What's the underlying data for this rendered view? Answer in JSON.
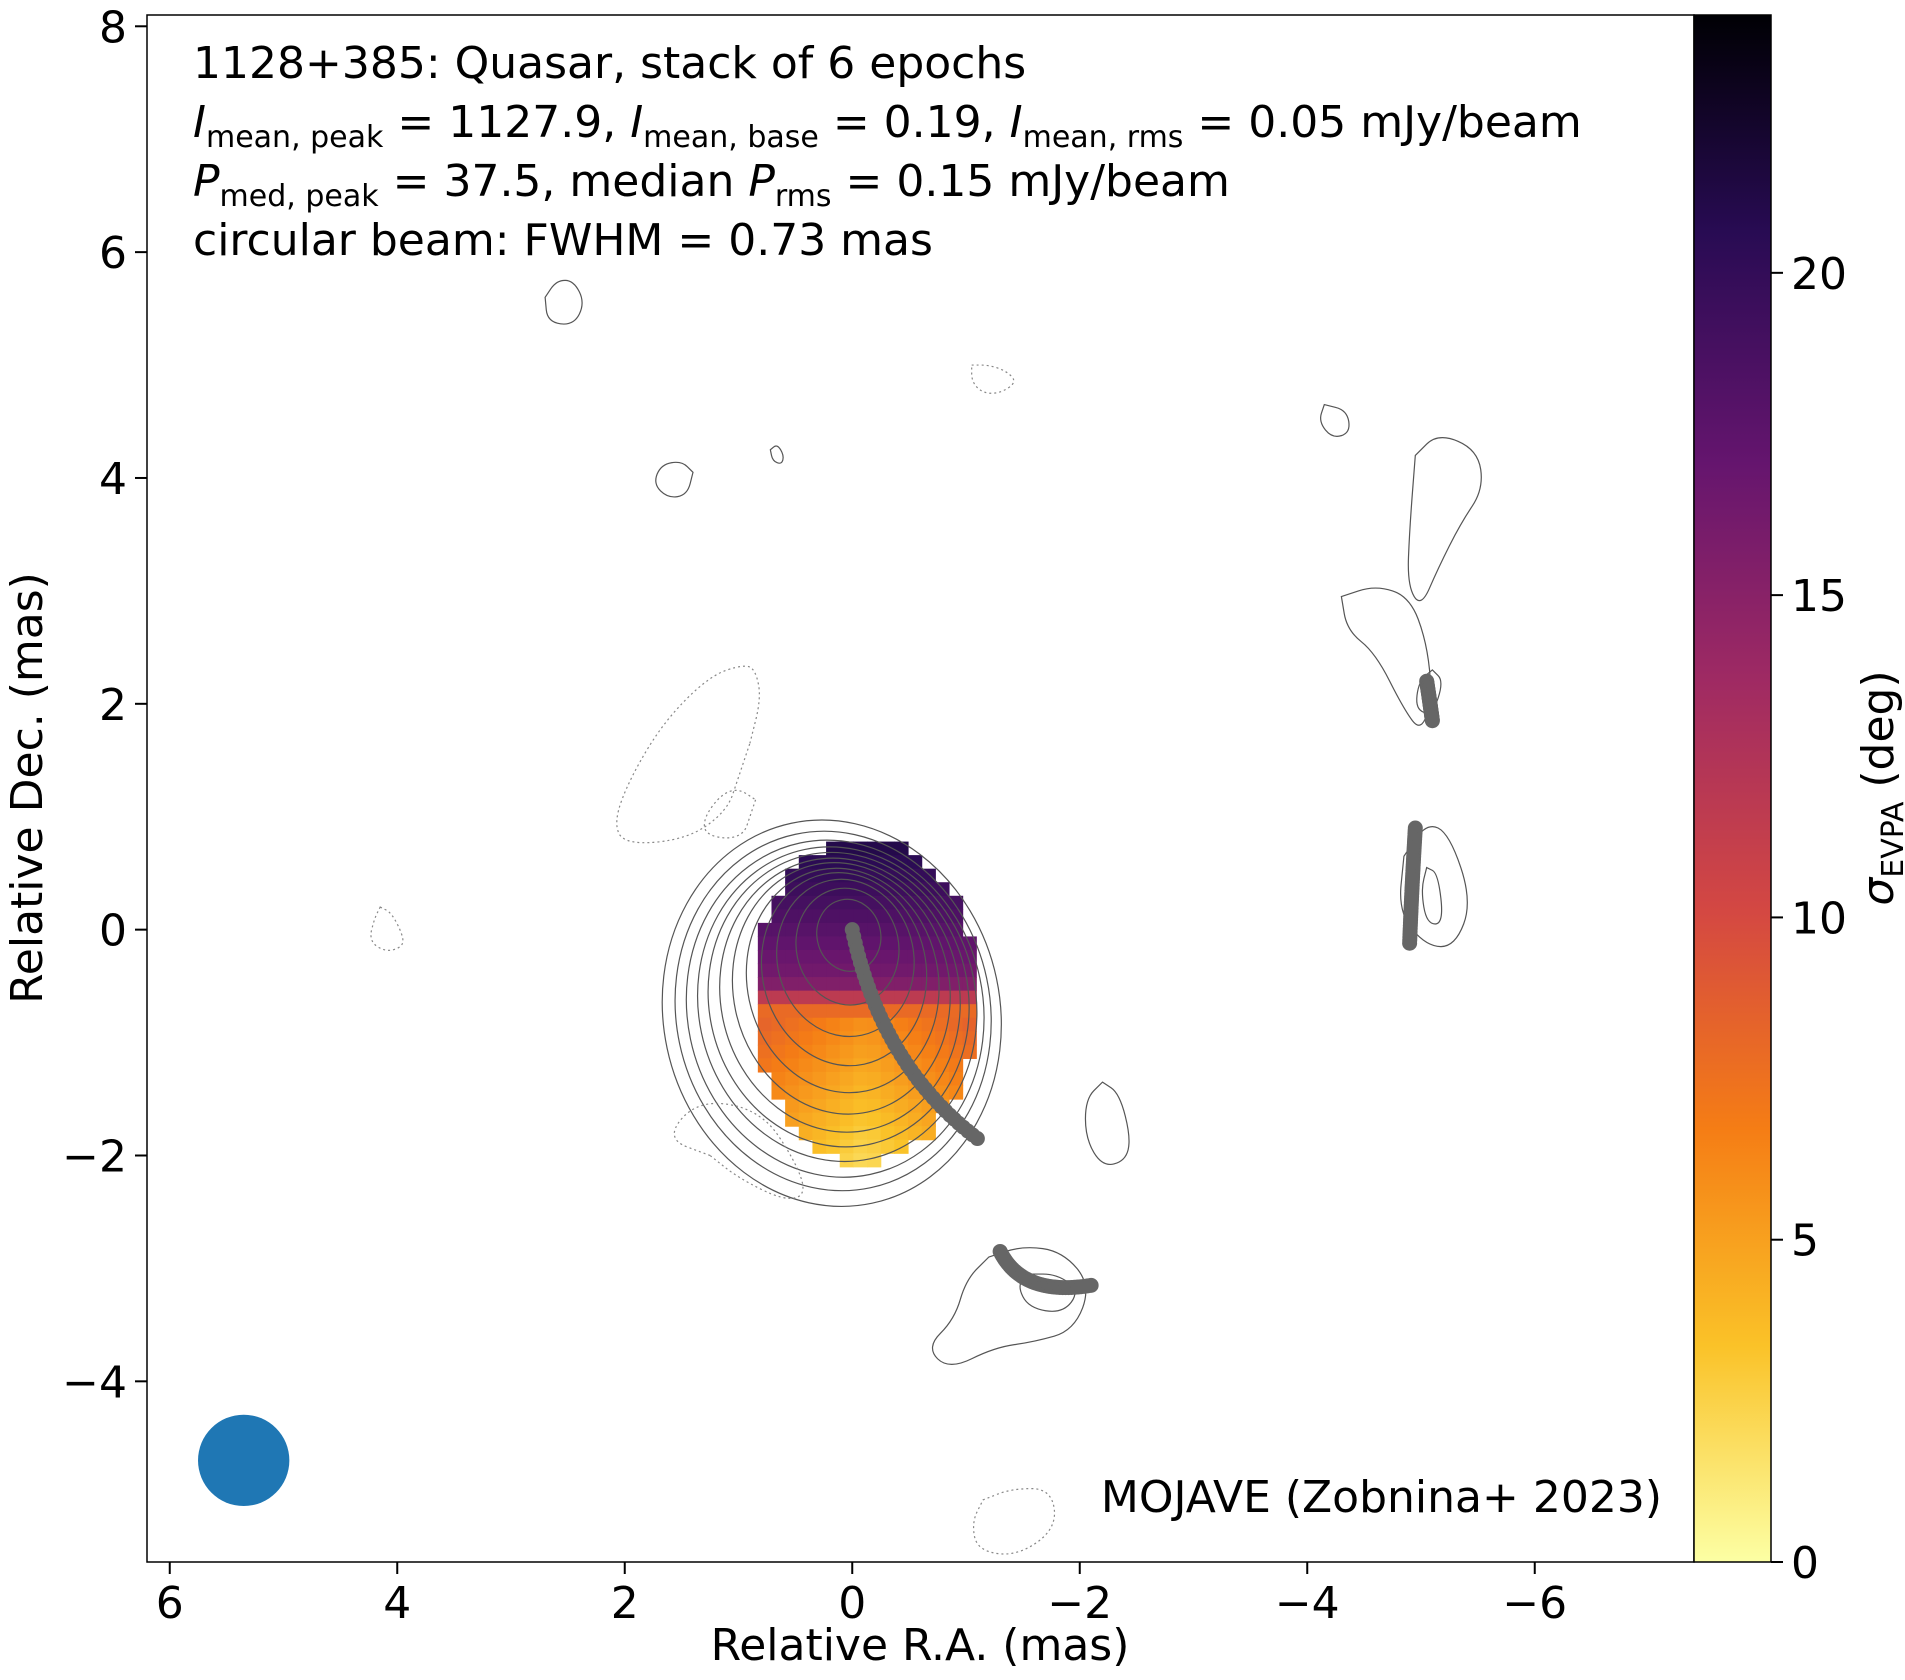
{
  "chart_data": {
    "type": "heatmap",
    "title_lines": [
      "1128+385: Quasar, stack of 6 epochs",
      "I_mean,peak = 1127.9, I_mean,base = 0.19, I_mean,rms = 0.05 mJy/beam",
      "P_med,peak = 37.5, median P_rms = 0.15 mJy/beam",
      "circular beam: FWHM = 0.73 mas"
    ],
    "info": {
      "line1": "1128+385: Quasar, stack of 6 epochs",
      "line2": {
        "i_sym": "I",
        "peak_sub": "mean, peak",
        "peak_val": " = 1127.9, ",
        "base_sub": "mean, base",
        "base_val": " = 0.19, ",
        "rms_sub": "mean, rms",
        "rms_val": " = 0.05 mJy/beam"
      },
      "line3": {
        "p_sym": "P",
        "peak_sub": "med, peak",
        "peak_val": " = 37.5, median ",
        "rms_sub": "rms",
        "rms_val": " = 0.15 mJy/beam"
      },
      "line4": "circular beam: FWHM = 0.73 mas"
    },
    "credit": "MOJAVE (Zobnina+ 2023)",
    "xlabel": "Relative R.A. (mas)",
    "ylabel": "Relative Dec. (mas)",
    "xlim": [
      6.2,
      -7.4
    ],
    "ylim": [
      -5.6,
      8.1
    ],
    "xticks": [
      6,
      4,
      2,
      0,
      -2,
      -4,
      -6
    ],
    "yticks": [
      8,
      6,
      4,
      2,
      0,
      -2,
      -4
    ],
    "colorbar": {
      "label_sym": "σ",
      "label_sub": "EVPA",
      "label_unit": " (deg)",
      "range": [
        0,
        24
      ],
      "ticks": [
        0,
        5,
        10,
        15,
        20
      ],
      "colormap": "inferno_r",
      "stops": [
        "#fcffa4",
        "#fac228",
        "#f57d15",
        "#d44842",
        "#9f2a63",
        "#65156e",
        "#280b53",
        "#000004"
      ]
    },
    "beam": {
      "ra": 5.35,
      "dec": -4.7,
      "fwhm": 0.73,
      "color": "#1f77b4"
    },
    "core_contours": [
      {
        "dec": -0.05,
        "ra_w": 0.28,
        "dec_h": 0.32,
        "shift": -0.05
      },
      {
        "dec": -0.15,
        "ra_w": 0.45,
        "dec_h": 0.52,
        "shift": -0.07
      },
      {
        "dec": -0.25,
        "ra_w": 0.6,
        "dec_h": 0.7,
        "shift": -0.1
      },
      {
        "dec": -0.35,
        "ra_w": 0.72,
        "dec_h": 0.86,
        "shift": -0.12
      },
      {
        "dec": -0.45,
        "ra_w": 0.84,
        "dec_h": 1.0,
        "shift": -0.14
      },
      {
        "dec": -0.52,
        "ra_w": 0.95,
        "dec_h": 1.12,
        "shift": -0.16
      },
      {
        "dec": -0.58,
        "ra_w": 1.05,
        "dec_h": 1.22,
        "shift": -0.18
      },
      {
        "dec": -0.62,
        "ra_w": 1.14,
        "dec_h": 1.31,
        "shift": -0.2
      },
      {
        "dec": -0.66,
        "ra_w": 1.22,
        "dec_h": 1.4,
        "shift": -0.22
      },
      {
        "dec": -0.7,
        "ra_w": 1.3,
        "dec_h": 1.5,
        "shift": -0.25
      },
      {
        "dec": -0.72,
        "ra_w": 1.38,
        "dec_h": 1.6,
        "shift": -0.28
      },
      {
        "dec": -0.74,
        "ra_w": 1.48,
        "dec_h": 1.72,
        "shift": -0.3
      }
    ],
    "features": {
      "solid": [
        [
          [
            2.7,
            5.6
          ],
          [
            2.6,
            5.75
          ],
          [
            2.45,
            5.75
          ],
          [
            2.35,
            5.55
          ],
          [
            2.45,
            5.35
          ],
          [
            2.68,
            5.38
          ]
        ],
        [
          [
            1.4,
            4.05
          ],
          [
            1.5,
            4.15
          ],
          [
            1.68,
            4.12
          ],
          [
            1.75,
            3.95
          ],
          [
            1.62,
            3.82
          ],
          [
            1.45,
            3.85
          ]
        ],
        [
          [
            0.72,
            4.25
          ],
          [
            0.7,
            4.15
          ],
          [
            0.62,
            4.12
          ],
          [
            0.6,
            4.2
          ],
          [
            0.66,
            4.3
          ]
        ],
        [
          [
            -4.15,
            4.65
          ],
          [
            -4.1,
            4.5
          ],
          [
            -4.22,
            4.35
          ],
          [
            -4.38,
            4.4
          ],
          [
            -4.35,
            4.6
          ]
        ],
        [
          [
            -4.95,
            4.2
          ],
          [
            -5.15,
            4.4
          ],
          [
            -5.5,
            4.25
          ],
          [
            -5.55,
            3.9
          ],
          [
            -5.35,
            3.6
          ],
          [
            -5.15,
            3.2
          ],
          [
            -5.0,
            2.85
          ],
          [
            -4.88,
            3.05
          ],
          [
            -4.9,
            3.55
          ]
        ],
        [
          [
            -4.3,
            2.95
          ],
          [
            -4.6,
            3.05
          ],
          [
            -4.9,
            2.95
          ],
          [
            -5.05,
            2.55
          ],
          [
            -5.1,
            2.05
          ],
          [
            -5.0,
            1.75
          ],
          [
            -4.85,
            1.95
          ],
          [
            -4.6,
            2.45
          ],
          [
            -4.35,
            2.65
          ]
        ],
        [
          [
            -5.1,
            2.3
          ],
          [
            -5.2,
            2.2
          ],
          [
            -5.1,
            1.9
          ],
          [
            -4.95,
            1.95
          ],
          [
            -4.98,
            2.2
          ]
        ],
        [
          [
            -4.85,
            0.65
          ],
          [
            -5.05,
            0.95
          ],
          [
            -5.25,
            0.85
          ],
          [
            -5.45,
            0.25
          ],
          [
            -5.3,
            -0.15
          ],
          [
            -5.05,
            -0.15
          ],
          [
            -4.8,
            0.15
          ]
        ],
        [
          [
            -5.05,
            0.55
          ],
          [
            -5.15,
            0.5
          ],
          [
            -5.2,
            0.05
          ],
          [
            -5.05,
            0.05
          ],
          [
            -5.0,
            0.35
          ]
        ],
        [
          [
            -2.2,
            -1.35
          ],
          [
            -2.35,
            -1.45
          ],
          [
            -2.45,
            -1.85
          ],
          [
            -2.4,
            -2.05
          ],
          [
            -2.2,
            -2.1
          ],
          [
            -2.05,
            -1.85
          ],
          [
            -2.05,
            -1.5
          ]
        ],
        [
          [
            -1.2,
            -2.9
          ],
          [
            -1.5,
            -2.8
          ],
          [
            -1.85,
            -2.85
          ],
          [
            -2.1,
            -3.15
          ],
          [
            -1.95,
            -3.55
          ],
          [
            -1.6,
            -3.65
          ],
          [
            -1.25,
            -3.7
          ],
          [
            -0.85,
            -3.9
          ],
          [
            -0.65,
            -3.7
          ],
          [
            -0.9,
            -3.45
          ],
          [
            -1.0,
            -3.1
          ]
        ],
        [
          [
            -1.55,
            -3.05
          ],
          [
            -1.8,
            -3.05
          ],
          [
            -2.0,
            -3.2
          ],
          [
            -1.85,
            -3.4
          ],
          [
            -1.55,
            -3.35
          ],
          [
            -1.45,
            -3.15
          ]
        ]
      ],
      "dotted": [
        [
          [
            0.9,
            1.65
          ],
          [
            0.8,
            2.05
          ],
          [
            0.85,
            2.3
          ],
          [
            0.95,
            2.35
          ],
          [
            1.25,
            2.25
          ],
          [
            1.65,
            1.85
          ],
          [
            1.95,
            1.35
          ],
          [
            2.1,
            0.95
          ],
          [
            2.0,
            0.75
          ],
          [
            1.45,
            0.8
          ],
          [
            1.1,
            1.05
          ],
          [
            1.0,
            1.35
          ]
        ],
        [
          [
            0.85,
            1.15
          ],
          [
            0.9,
            1.0
          ],
          [
            0.95,
            0.85
          ],
          [
            1.1,
            0.8
          ],
          [
            1.3,
            0.85
          ],
          [
            1.3,
            1.0
          ],
          [
            1.15,
            1.2
          ],
          [
            1.0,
            1.25
          ]
        ],
        [
          [
            -1.05,
            5.0
          ],
          [
            -1.2,
            5.0
          ],
          [
            -1.35,
            4.95
          ],
          [
            -1.45,
            4.85
          ],
          [
            -1.3,
            4.75
          ],
          [
            -1.15,
            4.75
          ],
          [
            -1.05,
            4.85
          ]
        ],
        [
          [
            4.15,
            0.2
          ],
          [
            4.05,
            0.15
          ],
          [
            3.95,
            -0.05
          ],
          [
            3.95,
            -0.15
          ],
          [
            4.1,
            -0.2
          ],
          [
            4.25,
            -0.1
          ],
          [
            4.2,
            0.1
          ]
        ],
        [
          [
            1.25,
            -2.0
          ],
          [
            1.65,
            -1.85
          ],
          [
            1.35,
            -1.5
          ],
          [
            0.8,
            -1.6
          ],
          [
            0.5,
            -2.05
          ],
          [
            0.4,
            -2.35
          ],
          [
            0.6,
            -2.4
          ],
          [
            1.0,
            -2.2
          ]
        ],
        [
          [
            -1.15,
            -5.05
          ],
          [
            -1.4,
            -4.95
          ],
          [
            -1.75,
            -4.95
          ],
          [
            -1.8,
            -5.3
          ],
          [
            -1.45,
            -5.55
          ],
          [
            -1.1,
            -5.5
          ],
          [
            -1.05,
            -5.25
          ]
        ]
      ]
    },
    "ridgelines": [
      {
        "start": [
          0.0,
          0.0
        ],
        "end": [
          -1.1,
          -1.85
        ],
        "control": [
          -0.25,
          -1.2
        ]
      },
      {
        "start": [
          -1.3,
          -2.85
        ],
        "end": [
          -2.1,
          -3.15
        ],
        "control": [
          -1.5,
          -3.25
        ]
      },
      {
        "start": [
          -5.05,
          2.2
        ],
        "end": [
          -5.1,
          1.85
        ],
        "control": [
          -5.08,
          2.0
        ]
      },
      {
        "start": [
          -4.95,
          0.9
        ],
        "end": [
          -4.9,
          -0.12
        ],
        "control": [
          -4.92,
          0.4
        ]
      }
    ],
    "pol_map": {
      "center": [
        -0.05,
        -0.55
      ],
      "ra_half_width": 1.0,
      "dec_half_height": 1.45,
      "cell": 0.12,
      "sigma_at_top": 20,
      "sigma_at_bottom": 2
    }
  }
}
